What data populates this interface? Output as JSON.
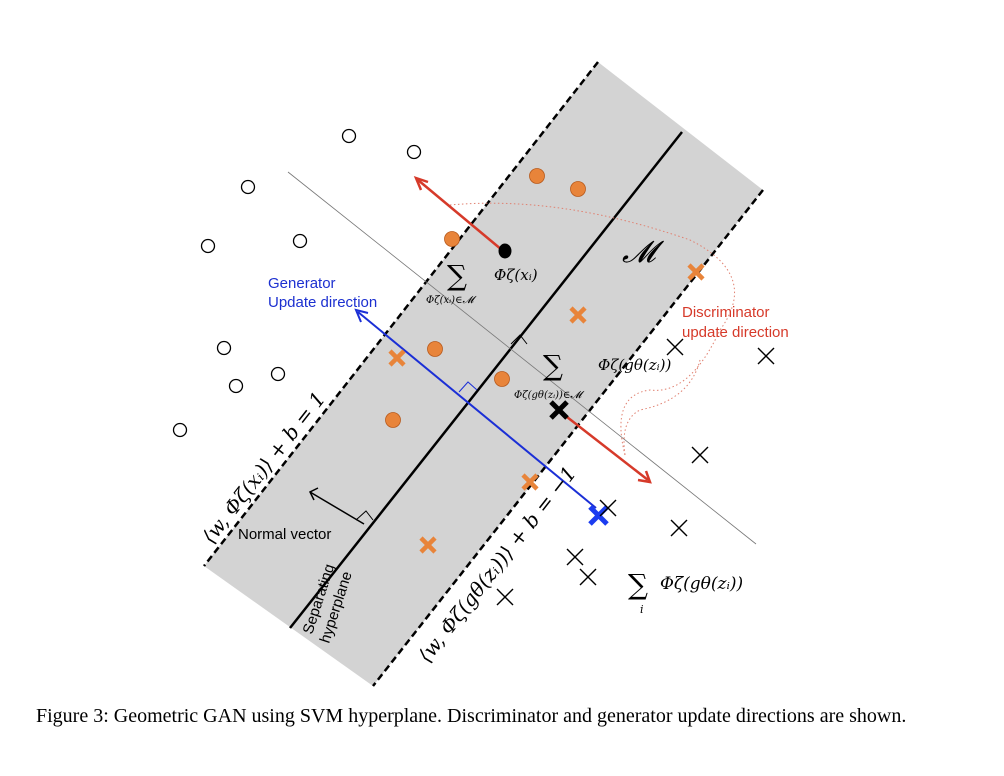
{
  "labels": {
    "generator_line1": "Generator",
    "generator_line2": "Update  direction",
    "discriminator_line1": "Discriminator",
    "discriminator_line2": "update direction",
    "normal_vector": "Normal vector",
    "separating_line1": "Separating",
    "separating_line2": "hyperplane"
  },
  "math": {
    "manifold": "𝓜",
    "phi_x": "Φζ(xᵢ)",
    "sum_top_sub": "Φζ(xᵢ)∈𝓜",
    "phi_g": "Φζ(gθ(zᵢ))",
    "sum_mid_sub": "Φζ(gθ(zᵢ))∈𝓜",
    "margin_top": "⟨w, Φζ(xᵢ)⟩ + b = 1",
    "margin_bottom": "⟨w, Φζ(gθ(zᵢ))⟩ + b = −1",
    "sum_right": "Φζ(gθ(zᵢ))",
    "sum_right_sub": "i",
    "sigma": "∑"
  },
  "colors": {
    "band": "#d3d3d3",
    "orange": "#e8843a",
    "red_arrow": "#d63a2a",
    "blue_arrow": "#1b2fd6",
    "blue_cross": "#1b3cf0",
    "dotted": "#e08070",
    "generator_text": "#1c30d0",
    "discriminator_text": "#d63a2a"
  },
  "caption": "Figure 3: Geometric GAN using SVM hyperplane.  Discriminator and generator update directions are shown."
}
